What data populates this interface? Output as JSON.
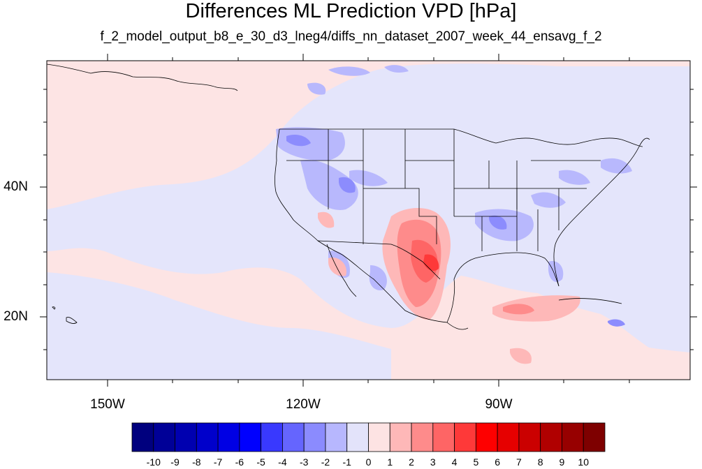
{
  "title": "Differences ML Prediction VPD [hPa]",
  "subtitle": "f_2_model_output_b8_e_30_d3_lneg4/diffs_nn_dataset_2007_week_44_ensavg_f_2",
  "longitude_labels": [
    "150W",
    "120W",
    "90W"
  ],
  "latitude_labels": [
    "40N",
    "20N"
  ],
  "colorbar": {
    "labels": [
      "-10",
      "-9",
      "-8",
      "-7",
      "-6",
      "-5",
      "-4",
      "-3",
      "-2",
      "-1",
      "0",
      "1",
      "2",
      "3",
      "4",
      "5",
      "6",
      "7",
      "8",
      "9",
      "10"
    ],
    "colors": [
      "#00007e",
      "#000097",
      "#0000b0",
      "#0000cb",
      "#0000e4",
      "#0000fe",
      "#3939fe",
      "#6565fe",
      "#8b8bfe",
      "#b7b7fe",
      "#e3e3fa",
      "#fde3e3",
      "#feb8b8",
      "#fe8b8b",
      "#fe6565",
      "#fe3939",
      "#fe0000",
      "#e60000",
      "#cb0000",
      "#b00000",
      "#970000",
      "#7e0000"
    ]
  }
}
